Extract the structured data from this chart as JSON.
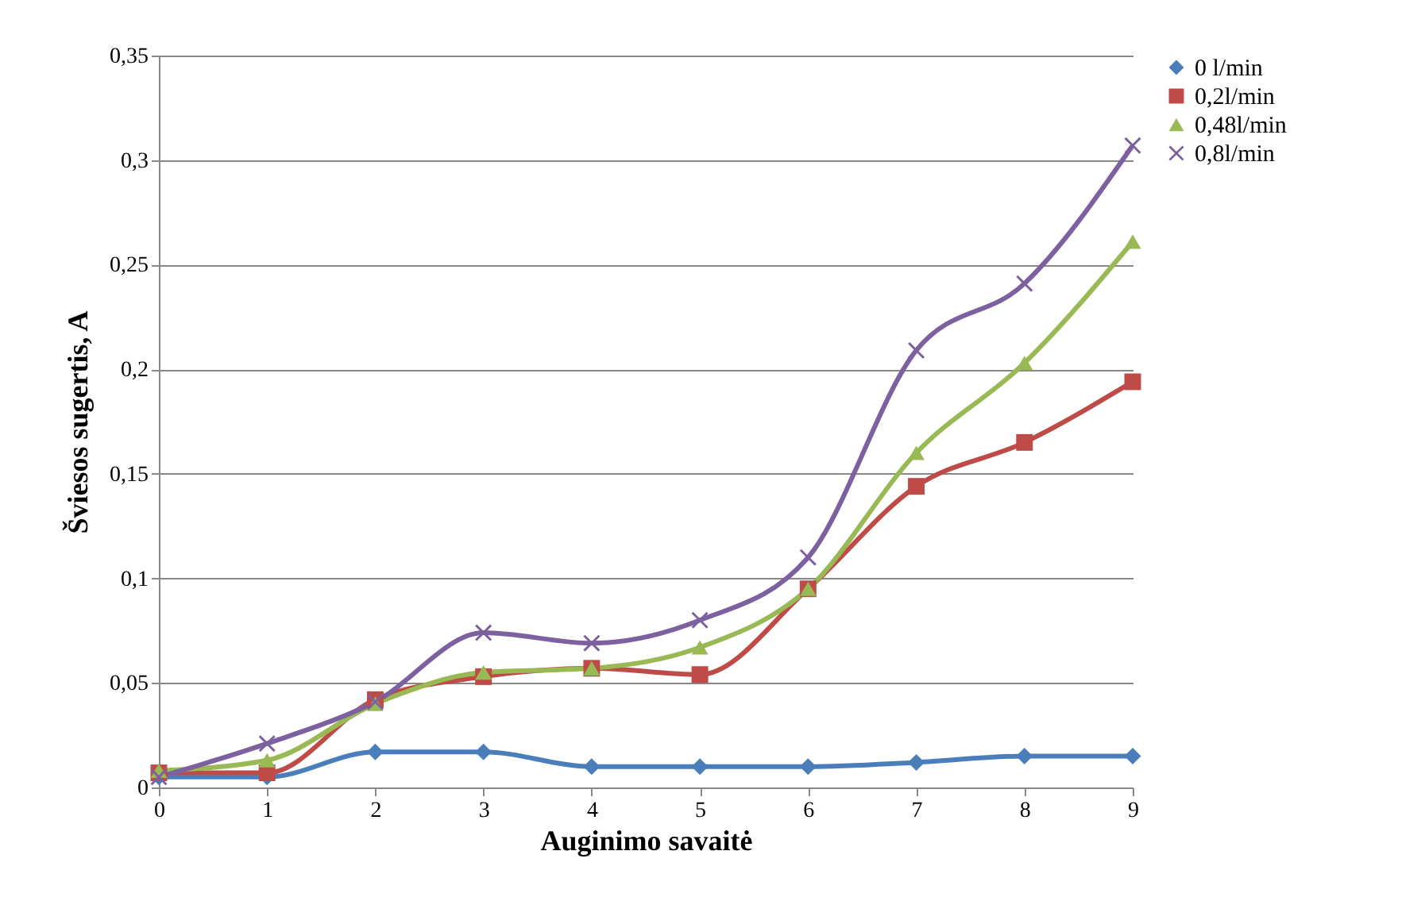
{
  "chart_data": {
    "type": "line",
    "xlabel": "Auginimo savaitė",
    "ylabel": "Šviesos sugertis, A",
    "categories": [
      "0",
      "1",
      "2",
      "3",
      "4",
      "5",
      "6",
      "7",
      "8",
      "9"
    ],
    "series": [
      {
        "name": "0 l/min",
        "color": "#4a7ebb",
        "marker": "diamond",
        "values": [
          0.005,
          0.005,
          0.017,
          0.017,
          0.01,
          0.01,
          0.01,
          0.012,
          0.015,
          0.015
        ]
      },
      {
        "name": "0,2l/min",
        "color": "#be4b48",
        "marker": "square",
        "values": [
          0.007,
          0.007,
          0.042,
          0.053,
          0.057,
          0.054,
          0.095,
          0.144,
          0.165,
          0.194
        ]
      },
      {
        "name": "0,48l/min",
        "color": "#98b954",
        "marker": "triangle",
        "values": [
          0.008,
          0.013,
          0.04,
          0.055,
          0.057,
          0.067,
          0.095,
          0.16,
          0.203,
          0.261
        ]
      },
      {
        "name": "0,8l/min",
        "color": "#7d60a0",
        "marker": "cross",
        "values": [
          0.005,
          0.021,
          0.041,
          0.074,
          0.069,
          0.08,
          0.11,
          0.209,
          0.241,
          0.307
        ]
      }
    ],
    "ylim": [
      0,
      0.35
    ],
    "yticks": [
      {
        "value": 0,
        "label": "0"
      },
      {
        "value": 0.05,
        "label": "0,05"
      },
      {
        "value": 0.1,
        "label": "0,1"
      },
      {
        "value": 0.15,
        "label": "0,15"
      },
      {
        "value": 0.2,
        "label": "0,2"
      },
      {
        "value": 0.25,
        "label": "0,25"
      },
      {
        "value": 0.3,
        "label": "0,3"
      },
      {
        "value": 0.35,
        "label": "0,35"
      }
    ],
    "grid": "y",
    "legend": "right",
    "line_style": "solid"
  }
}
